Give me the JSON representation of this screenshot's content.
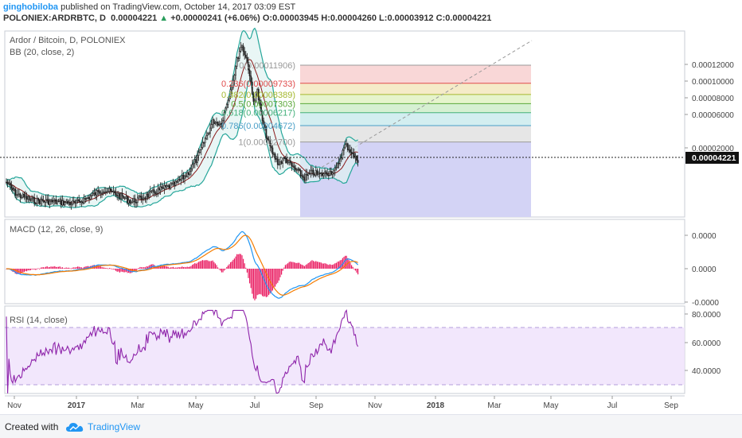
{
  "header": {
    "author": "ginghobiloba",
    "published": " published on TradingView.com, October 14, 2017 03:09 EST",
    "symbol": "POLONIEX:ARDRBTC, D",
    "last": "0.00004221",
    "change_arrow": "▲",
    "change": "+0.00000241 (+6.06%)",
    "o_label": "O:",
    "o_value": "0.00003945",
    "h_label": "H:",
    "h_value": "0.00004260",
    "l_label": "L:",
    "l_value": "0.00003912",
    "c_label": "C:",
    "c_value": "0.00004221"
  },
  "legend": {
    "price_title": "Ardor / Bitcoin, D, POLONIEX",
    "bb_title": "BB (20, close, 2)",
    "macd_title": "MACD (12, 26, close, 9)",
    "rsi_title": "RSI (14, close)"
  },
  "colors": {
    "candle": "#222222",
    "bb": "#26a69a",
    "bb_fill": "#e0f2f1",
    "bb_basis": "#8b1a1a",
    "macd": "#2196f3",
    "signal": "#f57c00",
    "hist": "#e91e63",
    "rsi": "#8e24aa",
    "rsi_band": "#efe1fb",
    "accent": "#2196f3"
  },
  "fib_levels": [
    {
      "label": "0(0.00011906)",
      "value": 0.00011906,
      "color": "#999999",
      "fill": "#f9d7d7"
    },
    {
      "label": "0.236(0.00009733)",
      "value": 9.733e-05,
      "color": "#e04b4b",
      "fill": "#f5ebc8"
    },
    {
      "label": "0.382(0.00008389)",
      "value": 8.389e-05,
      "color": "#a4b82e",
      "fill": "#e6f4cc"
    },
    {
      "label": "0.5(0.00007303)",
      "value": 7.303e-05,
      "color": "#5aa83a",
      "fill": "#d6f0d2"
    },
    {
      "label": "0.618(0.00006217)",
      "value": 6.217e-05,
      "color": "#43b07a",
      "fill": "#d3eef0"
    },
    {
      "label": "0.786(0.00004672)",
      "value": 4.672e-05,
      "color": "#4a9fc7",
      "fill": "#e6e6e6"
    },
    {
      "label": "1(0.00002700)",
      "value": 2.7e-05,
      "color": "#999999",
      "fill": "#d3d3f5"
    }
  ],
  "price_axis": {
    "ticks": [
      "0.00012000",
      "0.00010000",
      "0.00008000",
      "0.00006000",
      "0.00002000"
    ],
    "current": "0.00004221"
  },
  "macd_axis": {
    "ticks": [
      "0.0000",
      "0.0000",
      "-0.0000"
    ]
  },
  "rsi_axis": {
    "ticks": [
      "80.0000",
      "60.0000",
      "40.0000"
    ]
  },
  "time_axis": {
    "labels": [
      "Nov",
      "2017",
      "Mar",
      "May",
      "Jul",
      "Sep",
      "Nov",
      "2018",
      "Mar",
      "May",
      "Jul",
      "Sep"
    ]
  },
  "footer": {
    "created_with": "Created with",
    "brand": "TradingView"
  }
}
